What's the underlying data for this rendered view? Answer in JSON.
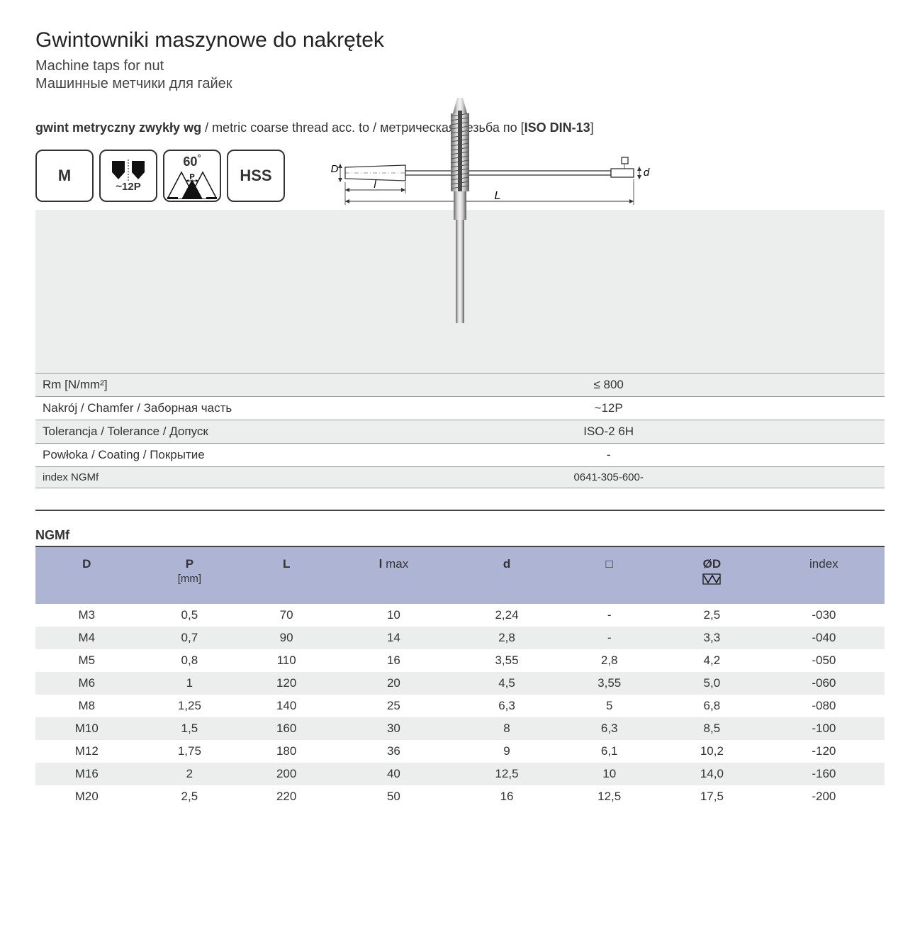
{
  "header": {
    "title_pl": "Gwintowniki maszynowe do nakrętek",
    "title_en": "Machine taps for nut",
    "title_ru": "Машинные метчики для гайек"
  },
  "thread_line": {
    "bold": "gwint metryczny zwykły wg",
    "rest": " / metric coarse thread acc. to / метрическая резьба по [",
    "std": "ISO DIN-13",
    "close": "]"
  },
  "badges": {
    "m": "M",
    "chamfer": "~12P",
    "angle": "60",
    "angle_deg": "°",
    "angle_p": "P",
    "hss": "HSS"
  },
  "dim_labels": {
    "D": "D",
    "l": "l",
    "L": "L",
    "d": "d"
  },
  "spec": {
    "rows": [
      {
        "label": "Rm [N/mm²]",
        "value": "≤ 800"
      },
      {
        "label": "Nakrój / Chamfer / Заборная часть",
        "value": "~12P"
      },
      {
        "label": "Tolerancja / Tolerance / Допуск",
        "value": "ISO-2 6H"
      },
      {
        "label": "Powłoka / Coating / Покрытие",
        "value": "-"
      },
      {
        "label": "index NGMf",
        "value": "0641-305-600-"
      }
    ]
  },
  "data_table": {
    "title": "NGMf",
    "headers": {
      "D": "D",
      "P": "P",
      "P_unit": "[mm]",
      "L": "L",
      "lmax_bold": "l",
      "lmax_rest": " max",
      "d": "d",
      "square": "□",
      "grindD": "ØD",
      "index": "index"
    },
    "rows": [
      [
        "M3",
        "0,5",
        "70",
        "10",
        "2,24",
        "-",
        "2,5",
        "-030"
      ],
      [
        "M4",
        "0,7",
        "90",
        "14",
        "2,8",
        "-",
        "3,3",
        "-040"
      ],
      [
        "M5",
        "0,8",
        "110",
        "16",
        "3,55",
        "2,8",
        "4,2",
        "-050"
      ],
      [
        "M6",
        "1",
        "120",
        "20",
        "4,5",
        "3,55",
        "5,0",
        "-060"
      ],
      [
        "M8",
        "1,25",
        "140",
        "25",
        "6,3",
        "5",
        "6,8",
        "-080"
      ],
      [
        "M10",
        "1,5",
        "160",
        "30",
        "8",
        "6,3",
        "8,5",
        "-100"
      ],
      [
        "M12",
        "1,75",
        "180",
        "36",
        "9",
        "6,1",
        "10,2",
        "-120"
      ],
      [
        "M16",
        "2",
        "200",
        "40",
        "12,5",
        "10",
        "14,0",
        "-160"
      ],
      [
        "M20",
        "2,5",
        "220",
        "50",
        "16",
        "12,5",
        "17,5",
        "-200"
      ]
    ]
  },
  "colors": {
    "header_bg": "#aeb5d4",
    "zebra": "#eceded"
  }
}
